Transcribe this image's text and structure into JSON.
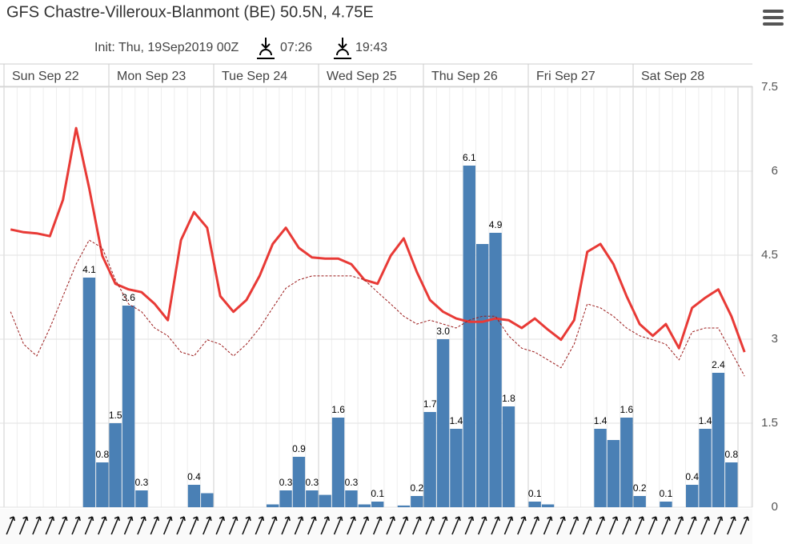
{
  "header": {
    "title": "GFS Chastre-Villeroux-Blanmont (BE) 50.5N, 4.75E",
    "init": "Init: Thu, 19Sep2019 00Z",
    "sunrise": "07:26",
    "sunset": "19:43"
  },
  "chart_data": {
    "type": "bar-line",
    "days": [
      "Sun Sep 22",
      "Mon Sep 23",
      "Tue Sep 24",
      "Wed Sep 25",
      "Thu Sep 26",
      "Fri Sep 27",
      "Sat Sep 28"
    ],
    "ylim": [
      0,
      7.5
    ],
    "yticks": [
      0,
      1.5,
      3,
      4.5,
      6,
      7.5
    ],
    "grid": true,
    "bars": {
      "color": "#4a80b5",
      "values": [
        0,
        0,
        0,
        0,
        0,
        0,
        4.1,
        0.8,
        1.5,
        3.6,
        0.3,
        0,
        0,
        0,
        0.4,
        0.25,
        0,
        0,
        0,
        0,
        0.05,
        0.3,
        0.9,
        0.3,
        0.22,
        1.6,
        0.3,
        0.05,
        0.1,
        0,
        0.03,
        0.2,
        1.7,
        3.0,
        1.4,
        6.1,
        4.7,
        4.9,
        1.8,
        0,
        0.1,
        0.05,
        0,
        0,
        0,
        1.4,
        1.2,
        1.6,
        0.2,
        0,
        0.1,
        0,
        0.4,
        1.4,
        2.4,
        0.8,
        0
      ],
      "value_labels": [
        null,
        null,
        null,
        null,
        null,
        null,
        "4.1",
        "0.8",
        "1.5",
        "3.6",
        "0.3",
        null,
        null,
        null,
        "0.4",
        null,
        null,
        null,
        null,
        null,
        null,
        "0.3",
        "0.9",
        "0.3",
        null,
        "1.6",
        "0.3",
        null,
        "0.1",
        null,
        null,
        "0.2",
        "1.7",
        "3.0",
        "1.4",
        "6.1",
        null,
        "4.9",
        "1.8",
        null,
        "0.1",
        null,
        null,
        null,
        null,
        "1.4",
        null,
        "1.6",
        "0.2",
        null,
        "0.1",
        null,
        "0.4",
        "1.4",
        "2.4",
        "0.8",
        null
      ]
    },
    "series": [
      {
        "color": "#e83a36",
        "dashed": false,
        "values": [
          4.96,
          4.91,
          4.89,
          4.84,
          5.49,
          6.77,
          5.7,
          4.49,
          3.99,
          3.89,
          3.84,
          3.63,
          3.34,
          4.77,
          5.27,
          4.99,
          3.77,
          3.49,
          3.7,
          4.13,
          4.7,
          4.99,
          4.63,
          4.46,
          4.44,
          4.44,
          4.34,
          4.06,
          3.99,
          4.49,
          4.8,
          4.2,
          3.7,
          3.49,
          3.37,
          3.31,
          3.31,
          3.37,
          3.34,
          3.2,
          3.37,
          3.17,
          2.99,
          3.34,
          4.56,
          4.7,
          4.34,
          3.77,
          3.27,
          3.06,
          3.27,
          2.84,
          3.56,
          3.74,
          3.89,
          3.41,
          2.77
        ]
      },
      {
        "color": "#9b1a1a",
        "dashed": true,
        "values": [
          3.49,
          2.91,
          2.7,
          3.2,
          3.77,
          4.34,
          4.77,
          4.63,
          4.06,
          3.63,
          3.49,
          3.2,
          3.06,
          2.77,
          2.7,
          2.99,
          2.91,
          2.7,
          2.91,
          3.2,
          3.56,
          3.91,
          4.06,
          4.13,
          4.13,
          4.13,
          4.13,
          4.06,
          3.84,
          3.63,
          3.41,
          3.27,
          3.34,
          3.27,
          3.2,
          3.34,
          3.41,
          3.41,
          3.06,
          2.84,
          2.77,
          2.63,
          2.49,
          2.91,
          3.63,
          3.56,
          3.41,
          3.2,
          3.06,
          2.99,
          2.91,
          2.63,
          3.13,
          3.2,
          3.2,
          2.77,
          2.34
        ]
      }
    ]
  }
}
